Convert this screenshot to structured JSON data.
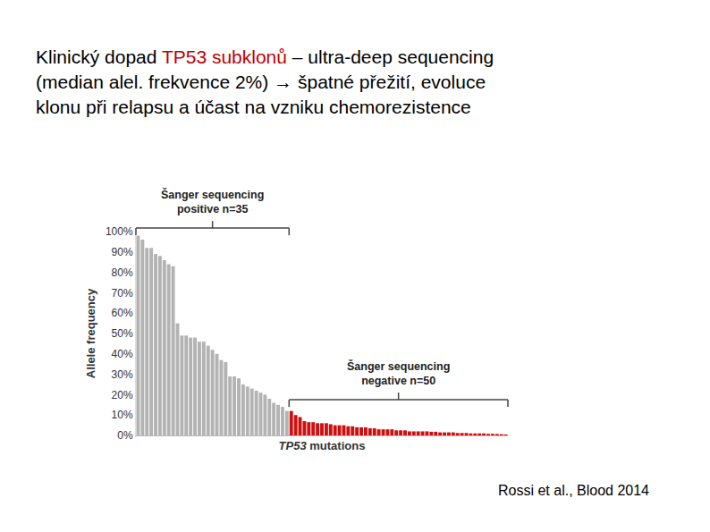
{
  "slide": {
    "title_lines": [
      [
        {
          "text": "Klinický dopad "
        },
        {
          "text": "TP53 subklonů",
          "color": "#c00000"
        },
        {
          "text": " – ultra-deep sequencing"
        }
      ],
      [
        {
          "text": "(median alel. frekvence 2%) → špatné přežití, evoluce"
        }
      ],
      [
        {
          "text": "klonu při relapsu a účast na vzniku chemorezistence"
        }
      ]
    ],
    "citation": "Rossi et al., Blood 2014"
  },
  "chart_data": {
    "type": "bar",
    "xlabel": "TP53 mutations",
    "ylabel": "Allele frequency",
    "categories": [
      null,
      null,
      null,
      null,
      null,
      null,
      null,
      null,
      null,
      null,
      null,
      null,
      null,
      null,
      null,
      null,
      null,
      null,
      null,
      null,
      null,
      null,
      null,
      null,
      null,
      null,
      null,
      null,
      null,
      null,
      null,
      null,
      null,
      null,
      null,
      null,
      null,
      null,
      null,
      null,
      null,
      null,
      null,
      null,
      null,
      null,
      null,
      null,
      null,
      null,
      null,
      null,
      null,
      null,
      null,
      null,
      null,
      null,
      null,
      null,
      null,
      null,
      null,
      null,
      null,
      null,
      null,
      null,
      null,
      null,
      null,
      null,
      null,
      null,
      null,
      null,
      null,
      null,
      null,
      null,
      null,
      null,
      null,
      null,
      null
    ],
    "values": [
      98,
      96,
      92,
      92,
      89,
      88,
      86,
      84,
      83,
      55,
      49,
      49,
      48,
      48,
      46,
      46,
      44,
      42,
      40,
      37,
      36,
      29,
      29,
      28,
      25,
      24,
      23,
      22,
      21,
      20,
      18,
      16,
      15,
      14,
      12,
      12,
      10,
      9,
      7,
      6.5,
      6.5,
      6,
      6,
      6,
      5.5,
      5,
      5,
      5,
      4.5,
      4.5,
      4,
      4,
      4,
      3.5,
      3.5,
      3,
      3,
      3,
      3,
      2.5,
      2.5,
      2.5,
      2,
      2,
      2,
      2,
      2,
      1.8,
      1.8,
      1.5,
      1.5,
      1.5,
      1.5,
      1.2,
      1.2,
      1.2,
      1,
      1,
      1,
      1,
      0.8,
      0.8,
      0.7,
      0.6,
      0.5
    ],
    "colors": [
      "#b3b3b3",
      "#b3b3b3",
      "#b3b3b3",
      "#b3b3b3",
      "#b3b3b3",
      "#b3b3b3",
      "#b3b3b3",
      "#b3b3b3",
      "#b3b3b3",
      "#b3b3b3",
      "#b3b3b3",
      "#b3b3b3",
      "#b3b3b3",
      "#b3b3b3",
      "#b3b3b3",
      "#b3b3b3",
      "#b3b3b3",
      "#b3b3b3",
      "#b3b3b3",
      "#b3b3b3",
      "#b3b3b3",
      "#b3b3b3",
      "#b3b3b3",
      "#b3b3b3",
      "#b3b3b3",
      "#b3b3b3",
      "#b3b3b3",
      "#b3b3b3",
      "#b3b3b3",
      "#b3b3b3",
      "#b3b3b3",
      "#b3b3b3",
      "#b3b3b3",
      "#b3b3b3",
      "#b3b3b3",
      "#cc1010",
      "#cc1010",
      "#cc1010",
      "#cc1010",
      "#cc1010",
      "#cc1010",
      "#cc1010",
      "#cc1010",
      "#cc1010",
      "#cc1010",
      "#cc1010",
      "#cc1010",
      "#cc1010",
      "#cc1010",
      "#cc1010",
      "#cc1010",
      "#cc1010",
      "#cc1010",
      "#cc1010",
      "#cc1010",
      "#cc1010",
      "#cc1010",
      "#cc1010",
      "#cc1010",
      "#cc1010",
      "#cc1010",
      "#cc1010",
      "#cc1010",
      "#cc1010",
      "#cc1010",
      "#cc1010",
      "#cc1010",
      "#cc1010",
      "#cc1010",
      "#cc1010",
      "#cc1010",
      "#cc1010",
      "#cc1010",
      "#cc1010",
      "#cc1010",
      "#cc1010",
      "#cc1010",
      "#cc1010",
      "#cc1010",
      "#cc1010",
      "#cc1010",
      "#cc1010",
      "#cc1010",
      "#cc1010",
      "#cc1010"
    ],
    "ylim": [
      0,
      100
    ],
    "yticks": [
      {
        "value": 0,
        "label": "0%"
      },
      {
        "value": 10,
        "label": "10%"
      },
      {
        "value": 20,
        "label": "20%"
      },
      {
        "value": 30,
        "label": "30%"
      },
      {
        "value": 40,
        "label": "40%"
      },
      {
        "value": 50,
        "label": "50%"
      },
      {
        "value": 60,
        "label": "60%"
      },
      {
        "value": 70,
        "label": "70%"
      },
      {
        "value": 80,
        "label": "80%"
      },
      {
        "value": 90,
        "label": "90%"
      },
      {
        "value": 100,
        "label": "100%"
      }
    ],
    "grid": false,
    "tick_labels": "y",
    "annotations": [
      {
        "lines": [
          "Šanger sequencing",
          "positive n=35"
        ],
        "start": 0,
        "end": 34,
        "y": 101.7
      },
      {
        "lines": [
          "Šanger sequencing",
          "negative n=50"
        ],
        "start": 35,
        "end": 84,
        "y": 17.5
      }
    ]
  }
}
